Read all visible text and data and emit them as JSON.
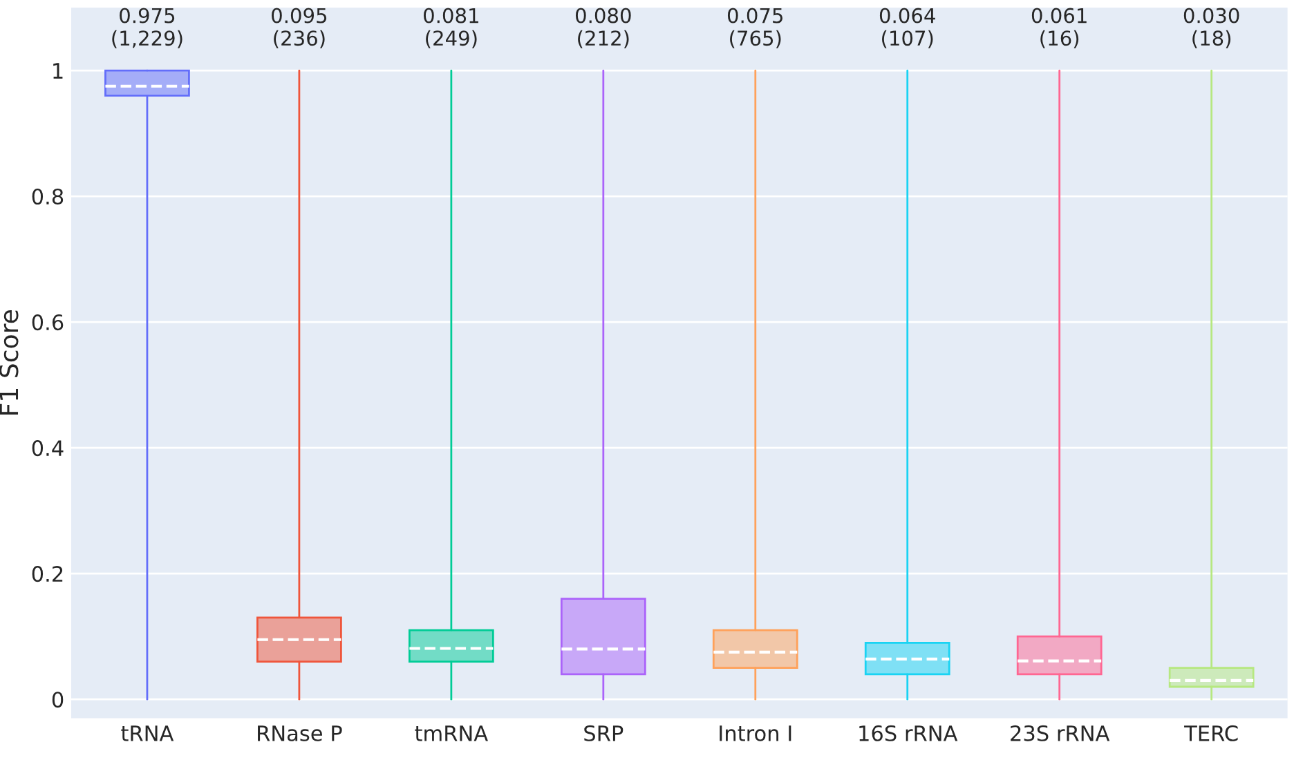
{
  "chart_data": {
    "type": "box",
    "ylabel": "F1 Score",
    "categories": [
      "tRNA",
      "RNase P",
      "tmRNA",
      "SRP",
      "Intron I",
      "16S rRNA",
      "23S rRNA",
      "TERC"
    ],
    "colors": [
      "#636efa",
      "#ef553b",
      "#00cc96",
      "#ab63fa",
      "#ffa15a",
      "#19d3f3",
      "#ff6692",
      "#b6e880"
    ],
    "boxes": [
      {
        "low": 0,
        "q1": 0.96,
        "median": 0.975,
        "q3": 1.0,
        "high": 1.0
      },
      {
        "low": 0,
        "q1": 0.06,
        "median": 0.095,
        "q3": 0.13,
        "high": 1.0
      },
      {
        "low": 0,
        "q1": 0.06,
        "median": 0.081,
        "q3": 0.11,
        "high": 1.0
      },
      {
        "low": 0,
        "q1": 0.04,
        "median": 0.08,
        "q3": 0.16,
        "high": 1.0
      },
      {
        "low": 0,
        "q1": 0.05,
        "median": 0.075,
        "q3": 0.11,
        "high": 1.0
      },
      {
        "low": 0,
        "q1": 0.04,
        "median": 0.064,
        "q3": 0.09,
        "high": 1.0
      },
      {
        "low": 0,
        "q1": 0.04,
        "median": 0.061,
        "q3": 0.1,
        "high": 1.0
      },
      {
        "low": 0,
        "q1": 0.02,
        "median": 0.03,
        "q3": 0.05,
        "high": 1.0
      }
    ],
    "annotations": [
      "0.975\n(1,229)",
      "0.095\n(236)",
      "0.081\n(249)",
      "0.080\n(212)",
      "0.075\n(765)",
      "0.064\n(107)",
      "0.061\n(16)",
      "0.030\n(18)"
    ],
    "ylim": [
      -0.03,
      1.1
    ],
    "yticks": [
      0,
      0.2,
      0.4,
      0.6,
      0.8,
      {
        "value": 1,
        "label": "1"
      }
    ],
    "grid": "y"
  }
}
